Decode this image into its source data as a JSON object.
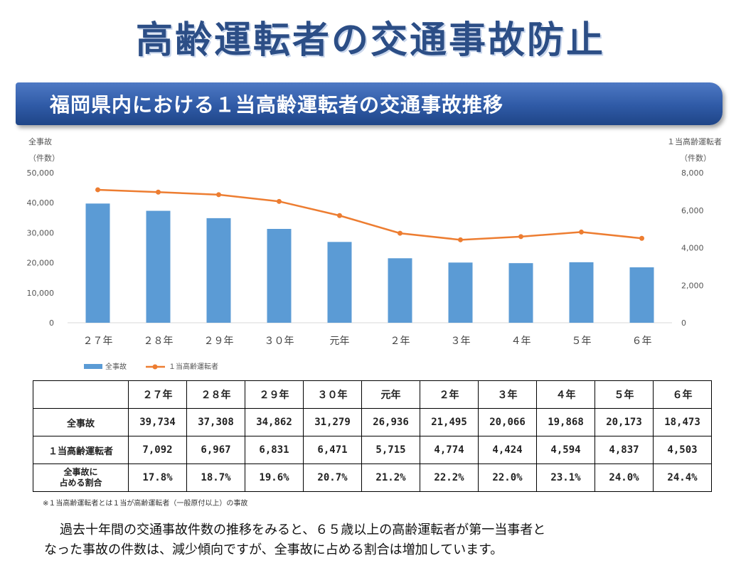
{
  "page": {
    "title": "高齢運転者の交通事故防止",
    "subtitle": "福岡県内における１当高齢運転者の交通事故推移",
    "footnote": "※１当高齢運転者とは１当が高齢運転者（一般原付以上）の事故",
    "summary_line1": "過去十年間の交通事故件数の推移をみると、６５歳以上の高齢運転者が第一当事者と",
    "summary_line2": "なった事故の件数は、減少傾向ですが、全事故に占める割合は増加しています。"
  },
  "colors": {
    "bar": "#5b9bd5",
    "line": "#ed7d31",
    "title": "#2c4e86",
    "banner": "#2f5aa6"
  },
  "chart_data": {
    "type": "bar",
    "categories": [
      "２７年",
      "２８年",
      "２９年",
      "３０年",
      "元年",
      "２年",
      "３年",
      "４年",
      "５年",
      "６年"
    ],
    "left_axis_title": "全事故",
    "left_axis_unit": "（件数）",
    "right_axis_title": "１当高齢運転者",
    "right_axis_unit": "（件数）",
    "left_ylim": [
      0,
      50000
    ],
    "right_ylim": [
      0,
      8000
    ],
    "left_ticks": [
      "50,000",
      "40,000",
      "30,000",
      "20,000",
      "10,000",
      "0"
    ],
    "right_ticks": [
      "8,000",
      "6,000",
      "4,000",
      "2,000",
      "0"
    ],
    "series": [
      {
        "name": "全事故",
        "type": "bar",
        "axis": "left",
        "values": [
          39734,
          37308,
          34862,
          31279,
          26936,
          21495,
          20066,
          19868,
          20173,
          18473
        ]
      },
      {
        "name": "１当高齢運転者",
        "type": "line",
        "axis": "right",
        "values": [
          7092,
          6967,
          6831,
          6471,
          5715,
          4774,
          4424,
          4594,
          4837,
          4503
        ]
      }
    ],
    "legend_position": "bottom-left",
    "grid": false
  },
  "table": {
    "headers": [
      "２７年",
      "２８年",
      "２９年",
      "３０年",
      "元年",
      "２年",
      "３年",
      "４年",
      "５年",
      "６年"
    ],
    "rows": [
      {
        "label": "全事故",
        "cells": [
          "39,734",
          "37,308",
          "34,862",
          "31,279",
          "26,936",
          "21,495",
          "20,066",
          "19,868",
          "20,173",
          "18,473"
        ]
      },
      {
        "label": "１当高齢運転者",
        "cells": [
          "7,092",
          "6,967",
          "6,831",
          "6,471",
          "5,715",
          "4,774",
          "4,424",
          "4,594",
          "4,837",
          "4,503"
        ]
      },
      {
        "label_line1": "全事故に",
        "label_line2": "占める割合",
        "cells": [
          "17.8%",
          "18.7%",
          "19.6%",
          "20.7%",
          "21.2%",
          "22.2%",
          "22.0%",
          "23.1%",
          "24.0%",
          "24.4%"
        ]
      }
    ]
  }
}
